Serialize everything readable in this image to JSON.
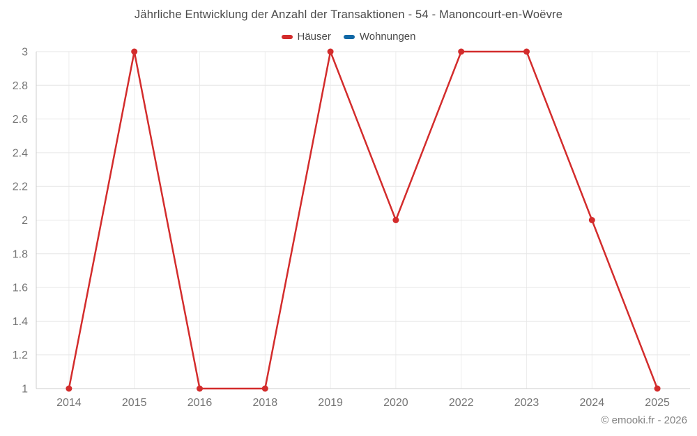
{
  "chart": {
    "footer": "© emooki.fr - 2026",
    "colors": {
      "grid_horizontal": "#e6e6e6",
      "grid_vertical": "#ededed",
      "axis_line": "#cccccc",
      "tick_label": "#757575",
      "title_text": "#4a4a4a"
    }
  },
  "chart_data": {
    "type": "line",
    "title": "Jährliche Entwicklung der Anzahl der Transaktionen - 54 - Manoncourt-en-Woëvre",
    "categories": [
      "2014",
      "2015",
      "2016",
      "2018",
      "2019",
      "2020",
      "2022",
      "2023",
      "2024",
      "2025"
    ],
    "series": [
      {
        "name": "Häuser",
        "color": "#d32c2c",
        "values": [
          1,
          3,
          1,
          1,
          3,
          2,
          3,
          3,
          2,
          1
        ]
      },
      {
        "name": "Wohnungen",
        "color": "#1168a6",
        "values": []
      }
    ],
    "xlabel": "",
    "ylabel": "",
    "ylim": [
      1,
      3
    ],
    "yticks": [
      1,
      1.2,
      1.4,
      1.6,
      1.8,
      2,
      2.2,
      2.4,
      2.6,
      2.8,
      3
    ],
    "ytick_labels": [
      "1",
      "1.2",
      "1.4",
      "1.6",
      "1.8",
      "2",
      "2.2",
      "2.4",
      "2.6",
      "2.8",
      "3"
    ],
    "grid": true,
    "legend_position": "top"
  }
}
